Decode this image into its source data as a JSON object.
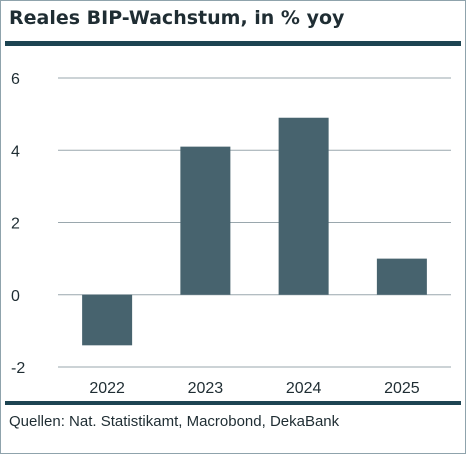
{
  "title": "Reales BIP-Wachstum, in % yoy",
  "source": "Quellen: Nat. Statistikamt, Macrobond, DekaBank",
  "chart_data": {
    "type": "bar",
    "title": "Reales BIP-Wachstum, in % yoy",
    "categories": [
      "2022",
      "2023",
      "2024",
      "2025"
    ],
    "values": [
      -1.4,
      4.1,
      4.9,
      1.0
    ],
    "ylim": [
      -2,
      6
    ],
    "yticks": [
      -2,
      0,
      2,
      4,
      6
    ],
    "ytick_labels": [
      "-2",
      "0",
      "2",
      "4",
      "6"
    ],
    "grid": true,
    "bar_color": "#47636e",
    "grid_color": "#9aa7ad"
  }
}
